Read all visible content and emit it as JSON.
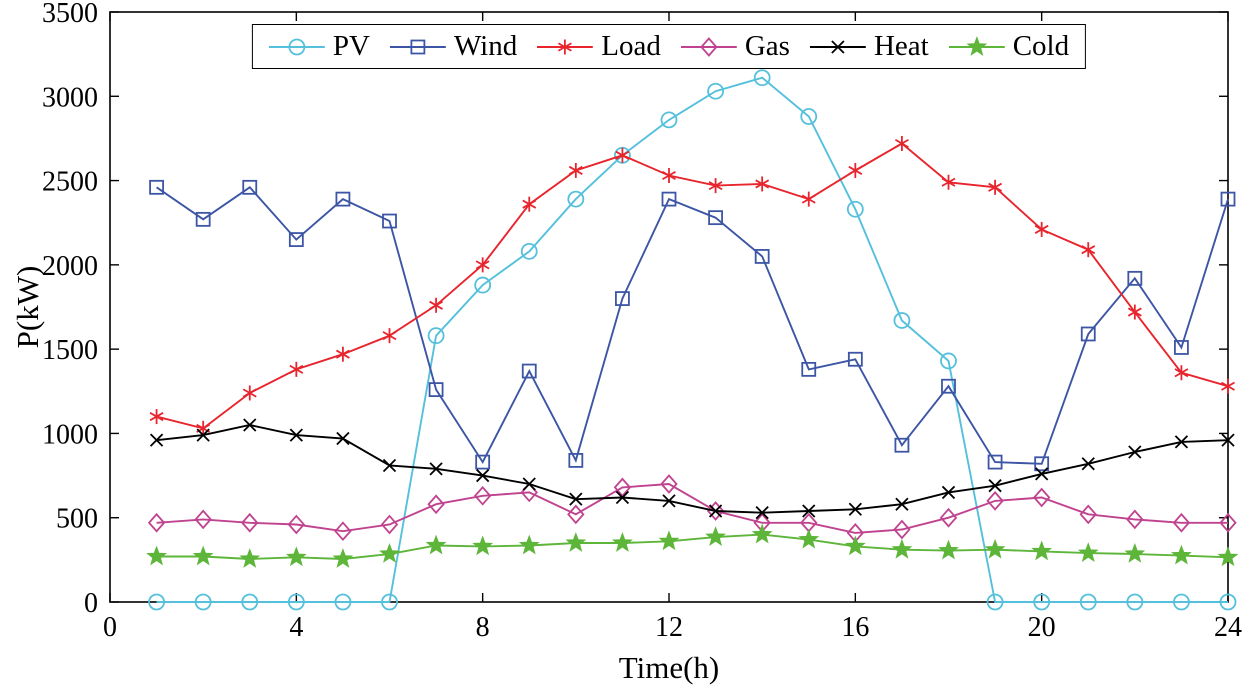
{
  "chart_data": {
    "type": "line",
    "title": "",
    "xlabel": "Time(h)",
    "ylabel": "P(kW)",
    "xlim": [
      0,
      24
    ],
    "ylim": [
      0,
      3500
    ],
    "xticks": [
      0,
      4,
      8,
      12,
      16,
      20,
      24
    ],
    "yticks": [
      0,
      500,
      1000,
      1500,
      2000,
      2500,
      3000,
      3500
    ],
    "grid": false,
    "legend_position": "top-inside-horizontal",
    "x": [
      1,
      2,
      3,
      4,
      5,
      6,
      7,
      8,
      9,
      10,
      11,
      12,
      13,
      14,
      15,
      16,
      17,
      18,
      19,
      20,
      21,
      22,
      23,
      24
    ],
    "series": [
      {
        "name": "PV",
        "color": "#55C0DC",
        "marker": "circle",
        "values": [
          0,
          0,
          0,
          0,
          0,
          0,
          1580,
          1880,
          2080,
          2390,
          2650,
          2860,
          3030,
          3110,
          2880,
          2330,
          1670,
          1430,
          0,
          0,
          0,
          0,
          0,
          0
        ]
      },
      {
        "name": "Wind",
        "color": "#3C55A5",
        "marker": "square",
        "values": [
          2460,
          2270,
          2460,
          2150,
          2390,
          2260,
          1260,
          830,
          1370,
          840,
          1800,
          2390,
          2280,
          2050,
          1380,
          1440,
          930,
          1280,
          830,
          820,
          1590,
          1920,
          1510,
          2390
        ]
      },
      {
        "name": "Load",
        "color": "#E8242C",
        "marker": "asterisk",
        "values": [
          1100,
          1030,
          1240,
          1380,
          1470,
          1580,
          1760,
          2000,
          2360,
          2560,
          2650,
          2530,
          2470,
          2480,
          2390,
          2560,
          2720,
          2490,
          2460,
          2210,
          2090,
          1720,
          1360,
          1280
        ]
      },
      {
        "name": "Gas",
        "color": "#C0438F",
        "marker": "diamond",
        "values": [
          470,
          490,
          470,
          460,
          420,
          460,
          580,
          630,
          650,
          520,
          680,
          700,
          540,
          470,
          470,
          410,
          430,
          500,
          600,
          620,
          520,
          490,
          470,
          470
        ]
      },
      {
        "name": "Heat",
        "color": "#000000",
        "marker": "x",
        "values": [
          960,
          990,
          1050,
          990,
          970,
          810,
          790,
          750,
          700,
          610,
          620,
          600,
          540,
          530,
          540,
          550,
          580,
          650,
          690,
          760,
          820,
          890,
          950,
          960
        ]
      },
      {
        "name": "Cold",
        "color": "#5DB53A",
        "marker": "star",
        "values": [
          270,
          270,
          255,
          265,
          255,
          285,
          335,
          330,
          335,
          350,
          350,
          360,
          385,
          400,
          370,
          330,
          310,
          305,
          310,
          300,
          290,
          285,
          275,
          265
        ]
      }
    ]
  }
}
